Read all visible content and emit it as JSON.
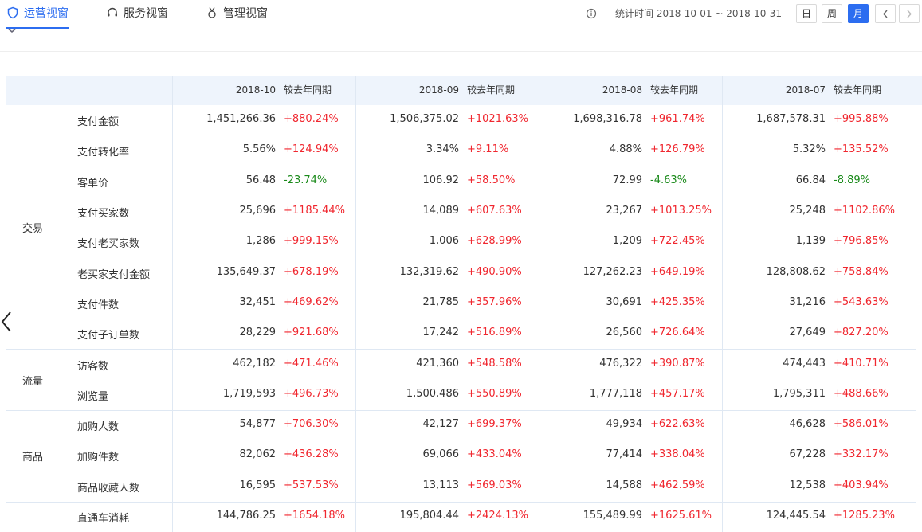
{
  "header": {
    "tabs": [
      {
        "label": "运营视窗",
        "icon": "shield-icon",
        "active": true
      },
      {
        "label": "服务视窗",
        "icon": "headset-icon",
        "active": false
      },
      {
        "label": "管理视窗",
        "icon": "medal-icon",
        "active": false
      }
    ],
    "stat_time": "统计时间 2018-10-01 ~ 2018-10-31",
    "periods": [
      {
        "label": "日",
        "active": false
      },
      {
        "label": "周",
        "active": false
      },
      {
        "label": "月",
        "active": true
      }
    ]
  },
  "colors": {
    "accent": "#2c6df0",
    "up": "#f0272f",
    "down": "#1a8a1a",
    "header_bg": "#eef4fc"
  },
  "table": {
    "yoy_label": "较去年同期",
    "periods": [
      "2018-10",
      "2018-09",
      "2018-08",
      "2018-07"
    ],
    "groups": [
      {
        "name": "交易",
        "rows": [
          {
            "metric": "支付金额",
            "cells": [
              [
                "1,451,266.36",
                "+880.24%"
              ],
              [
                "1,506,375.02",
                "+1021.63%"
              ],
              [
                "1,698,316.78",
                "+961.74%"
              ],
              [
                "1,687,578.31",
                "+995.88%"
              ]
            ]
          },
          {
            "metric": "支付转化率",
            "cells": [
              [
                "5.56%",
                "+124.94%"
              ],
              [
                "3.34%",
                "+9.11%"
              ],
              [
                "4.88%",
                "+126.79%"
              ],
              [
                "5.32%",
                "+135.52%"
              ]
            ]
          },
          {
            "metric": "客单价",
            "cells": [
              [
                "56.48",
                "-23.74%"
              ],
              [
                "106.92",
                "+58.50%"
              ],
              [
                "72.99",
                "-4.63%"
              ],
              [
                "66.84",
                "-8.89%"
              ]
            ]
          },
          {
            "metric": "支付买家数",
            "cells": [
              [
                "25,696",
                "+1185.44%"
              ],
              [
                "14,089",
                "+607.63%"
              ],
              [
                "23,267",
                "+1013.25%"
              ],
              [
                "25,248",
                "+1102.86%"
              ]
            ]
          },
          {
            "metric": "支付老买家数",
            "cells": [
              [
                "1,286",
                "+999.15%"
              ],
              [
                "1,006",
                "+628.99%"
              ],
              [
                "1,209",
                "+722.45%"
              ],
              [
                "1,139",
                "+796.85%"
              ]
            ]
          },
          {
            "metric": "老买家支付金额",
            "cells": [
              [
                "135,649.37",
                "+678.19%"
              ],
              [
                "132,319.62",
                "+490.90%"
              ],
              [
                "127,262.23",
                "+649.19%"
              ],
              [
                "128,808.62",
                "+758.84%"
              ]
            ]
          },
          {
            "metric": "支付件数",
            "cells": [
              [
                "32,451",
                "+469.62%"
              ],
              [
                "21,785",
                "+357.96%"
              ],
              [
                "30,691",
                "+425.35%"
              ],
              [
                "31,216",
                "+543.63%"
              ]
            ]
          },
          {
            "metric": "支付子订单数",
            "cells": [
              [
                "28,229",
                "+921.68%"
              ],
              [
                "17,242",
                "+516.89%"
              ],
              [
                "26,560",
                "+726.64%"
              ],
              [
                "27,649",
                "+827.20%"
              ]
            ]
          }
        ]
      },
      {
        "name": "流量",
        "rows": [
          {
            "metric": "访客数",
            "cells": [
              [
                "462,182",
                "+471.46%"
              ],
              [
                "421,360",
                "+548.58%"
              ],
              [
                "476,322",
                "+390.87%"
              ],
              [
                "474,443",
                "+410.71%"
              ]
            ]
          },
          {
            "metric": "浏览量",
            "cells": [
              [
                "1,719,593",
                "+496.73%"
              ],
              [
                "1,500,486",
                "+550.89%"
              ],
              [
                "1,777,118",
                "+457.17%"
              ],
              [
                "1,795,311",
                "+488.66%"
              ]
            ]
          }
        ]
      },
      {
        "name": "商品",
        "rows": [
          {
            "metric": "加购人数",
            "cells": [
              [
                "54,877",
                "+706.30%"
              ],
              [
                "42,127",
                "+699.37%"
              ],
              [
                "49,934",
                "+622.63%"
              ],
              [
                "46,628",
                "+586.01%"
              ]
            ]
          },
          {
            "metric": "加购件数",
            "cells": [
              [
                "82,062",
                "+436.28%"
              ],
              [
                "69,066",
                "+433.04%"
              ],
              [
                "77,414",
                "+338.04%"
              ],
              [
                "67,228",
                "+332.17%"
              ]
            ]
          },
          {
            "metric": "商品收藏人数",
            "cells": [
              [
                "16,595",
                "+537.53%"
              ],
              [
                "13,113",
                "+569.03%"
              ],
              [
                "14,588",
                "+462.59%"
              ],
              [
                "12,538",
                "+403.94%"
              ]
            ]
          }
        ]
      },
      {
        "name": "",
        "rows": [
          {
            "metric": "直通车消耗",
            "cells": [
              [
                "144,786.25",
                "+1654.18%"
              ],
              [
                "195,804.44",
                "+2424.13%"
              ],
              [
                "155,489.99",
                "+1625.61%"
              ],
              [
                "124,445.54",
                "+1285.23%"
              ]
            ]
          }
        ]
      }
    ]
  }
}
